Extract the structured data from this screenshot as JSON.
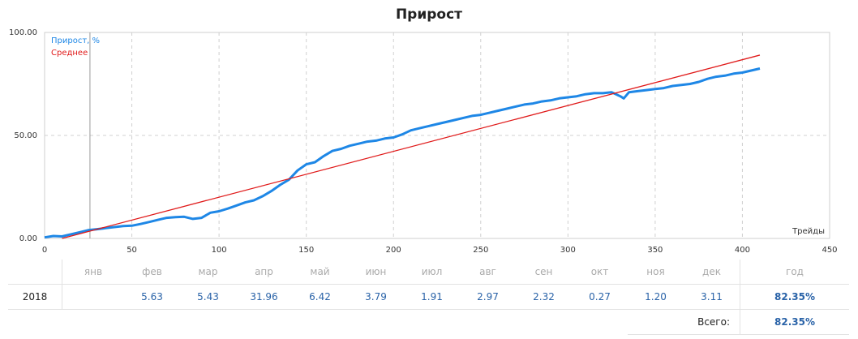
{
  "chart_data": {
    "type": "line",
    "title": "Прирост",
    "xlabel": "Трейды",
    "ylabel": "",
    "xlim": [
      0,
      450
    ],
    "ylim": [
      0,
      100
    ],
    "x_ticks": [
      "0",
      "50",
      "100",
      "150",
      "200",
      "250",
      "300",
      "350",
      "400",
      "450"
    ],
    "y_ticks": [
      "0.00",
      "50.00",
      "100.00"
    ],
    "grid": true,
    "legend_position": "top-left",
    "series": [
      {
        "name": "Прирост, %",
        "color": "#1e87e6",
        "x": [
          0,
          5,
          10,
          15,
          20,
          25,
          30,
          35,
          40,
          45,
          50,
          55,
          60,
          65,
          70,
          75,
          80,
          85,
          90,
          95,
          100,
          105,
          110,
          115,
          120,
          125,
          130,
          135,
          140,
          145,
          150,
          155,
          160,
          165,
          170,
          175,
          180,
          185,
          190,
          195,
          200,
          205,
          210,
          215,
          220,
          225,
          230,
          235,
          240,
          245,
          250,
          255,
          260,
          265,
          270,
          275,
          280,
          285,
          290,
          295,
          300,
          305,
          310,
          315,
          320,
          325,
          330,
          332,
          335,
          340,
          345,
          350,
          355,
          360,
          365,
          370,
          375,
          380,
          385,
          390,
          395,
          400,
          405,
          410
        ],
        "values": [
          0.5,
          1.2,
          1.0,
          2.0,
          3.0,
          4.0,
          4.5,
          5.0,
          5.5,
          6.0,
          6.2,
          7.0,
          8.0,
          9.0,
          10.0,
          10.3,
          10.5,
          9.5,
          10.0,
          12.5,
          13.2,
          14.5,
          16.0,
          17.5,
          18.5,
          20.5,
          23.0,
          26.0,
          28.5,
          33.0,
          36.0,
          37.0,
          40.0,
          42.5,
          43.5,
          45.0,
          46.0,
          47.0,
          47.5,
          48.5,
          49.0,
          50.5,
          52.5,
          53.5,
          54.5,
          55.5,
          56.5,
          57.5,
          58.5,
          59.5,
          60.0,
          61.0,
          62.0,
          63.0,
          64.0,
          65.0,
          65.5,
          66.5,
          67.0,
          68.0,
          68.5,
          69.0,
          70.0,
          70.5,
          70.5,
          71.0,
          69.0,
          68.0,
          71.0,
          71.5,
          72.0,
          72.5,
          73.0,
          74.0,
          74.5,
          75.0,
          76.0,
          77.5,
          78.5,
          79.0,
          80.0,
          80.5,
          81.5,
          82.5
        ]
      },
      {
        "name": "Среднее",
        "color": "#e01a1a",
        "x": [
          10,
          410
        ],
        "values": [
          0,
          89
        ]
      }
    ],
    "vertical_marker_x": 26
  },
  "table": {
    "months": [
      "янв",
      "фев",
      "мар",
      "апр",
      "май",
      "июн",
      "июл",
      "авг",
      "сен",
      "окт",
      "ноя",
      "дек"
    ],
    "year_header": "год",
    "rows": [
      {
        "year": "2018",
        "values": [
          "",
          "5.63",
          "5.43",
          "31.96",
          "6.42",
          "3.79",
          "1.91",
          "2.97",
          "2.32",
          "0.27",
          "1.20",
          "3.11"
        ],
        "total": "82.35%"
      }
    ],
    "total_label": "Всего:",
    "total_value": "82.35%"
  }
}
